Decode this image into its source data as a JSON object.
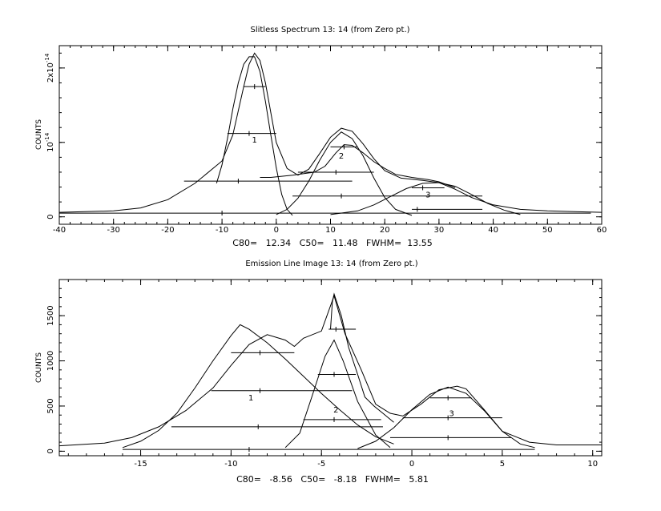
{
  "chart_data": [
    {
      "type": "line",
      "title": "Slitless Spectrum  13:  14   (from Zero pt.)",
      "ylabel": "COUNTS",
      "xlim": [
        -40,
        60
      ],
      "ylim": [
        -1e-15,
        2.3e-14
      ],
      "x_ticks": [
        "-40",
        "-30",
        "-20",
        "-10",
        "0",
        "10",
        "20",
        "30",
        "40",
        "50",
        "60"
      ],
      "y_ticks": [
        {
          "value": 0,
          "label": "0",
          "exp": ""
        },
        {
          "value": 1e-14,
          "label": "10",
          "exp": "-14"
        },
        {
          "value": 2e-14,
          "label": "2x10",
          "exp": "-14"
        }
      ],
      "footer": "C80=   12.34   C50=   11.48   FWHM=  13.55",
      "component_labels": [
        {
          "text": "1",
          "x": -4,
          "y": 1e-14
        },
        {
          "text": "2",
          "x": 12,
          "y": 7.8e-15
        },
        {
          "text": "3",
          "x": 28,
          "y": 2.6e-15
        }
      ],
      "series": [
        {
          "values": [
            [
              -40,
              6e-16
            ],
            [
              -30,
              8e-16
            ],
            [
              -25,
              1.2e-15
            ],
            [
              -20,
              2.3e-15
            ],
            [
              -15,
              4.5e-15
            ],
            [
              -10,
              7.5e-15
            ],
            [
              -8,
              1.1e-14
            ],
            [
              -6,
              1.75e-14
            ],
            [
              -5,
              2.05e-14
            ],
            [
              -4,
              2.2e-14
            ],
            [
              -3,
              2.1e-14
            ],
            [
              -2,
              1.8e-14
            ],
            [
              -1,
              1.4e-14
            ],
            [
              0,
              1e-14
            ],
            [
              2,
              6.5e-15
            ],
            [
              4,
              5.6e-15
            ],
            [
              6,
              6.4e-15
            ],
            [
              8,
              8.5e-15
            ],
            [
              10,
              1.07e-14
            ],
            [
              12,
              1.19e-14
            ],
            [
              14,
              1.15e-14
            ],
            [
              16,
              9.8e-15
            ],
            [
              18,
              7.8e-15
            ],
            [
              20,
              6.2e-15
            ],
            [
              23,
              5.2e-15
            ],
            [
              27,
              4.9e-15
            ],
            [
              30,
              4.6e-15
            ],
            [
              33,
              3.7e-15
            ],
            [
              36,
              2.6e-15
            ],
            [
              40,
              1.6e-15
            ],
            [
              45,
              1e-15
            ],
            [
              50,
              8e-16
            ],
            [
              55,
              7e-16
            ],
            [
              60,
              6e-16
            ]
          ]
        },
        {
          "values": [
            [
              -11,
              4.5e-15
            ],
            [
              -10,
              7e-15
            ],
            [
              -9,
              1.05e-14
            ],
            [
              -8,
              1.45e-14
            ],
            [
              -7,
              1.8e-14
            ],
            [
              -6,
              2.05e-14
            ],
            [
              -5,
              2.15e-14
            ],
            [
              -4,
              2.15e-14
            ],
            [
              -3,
              1.95e-14
            ],
            [
              -2,
              1.55e-14
            ],
            [
              -1,
              1.1e-14
            ],
            [
              0,
              6.6e-15
            ],
            [
              1,
              3e-15
            ],
            [
              2,
              1e-15
            ],
            [
              3,
              2e-16
            ]
          ]
        },
        {
          "values": [
            [
              0,
              3e-16
            ],
            [
              2,
              1e-15
            ],
            [
              4,
              2.5e-15
            ],
            [
              6,
              4.8e-15
            ],
            [
              8,
              7.6e-15
            ],
            [
              10,
              1e-14
            ],
            [
              12,
              1.14e-14
            ],
            [
              14,
              1.05e-14
            ],
            [
              16,
              8.2e-15
            ],
            [
              18,
              5.2e-15
            ],
            [
              20,
              2.6e-15
            ],
            [
              22,
              1e-15
            ],
            [
              25,
              2e-16
            ]
          ]
        },
        {
          "values": [
            [
              10,
              3e-16
            ],
            [
              15,
              8e-16
            ],
            [
              18,
              1.6e-15
            ],
            [
              21,
              2.7e-15
            ],
            [
              24,
              3.8e-15
            ],
            [
              27,
              4.5e-15
            ],
            [
              30,
              4.6e-15
            ],
            [
              33,
              4.1e-15
            ],
            [
              36,
              3e-15
            ],
            [
              39,
              1.8e-15
            ],
            [
              42,
              9e-16
            ],
            [
              45,
              3e-16
            ]
          ]
        },
        {
          "values": [
            [
              -3,
              5.3e-15
            ],
            [
              -1,
              5.3e-15
            ],
            [
              3,
              5.6e-15
            ],
            [
              7,
              6e-15
            ],
            [
              9,
              6.8e-15
            ],
            [
              11,
              8.6e-15
            ],
            [
              12.5,
              9.7e-15
            ],
            [
              14,
              9.6e-15
            ],
            [
              16,
              8.6e-15
            ],
            [
              18,
              7.4e-15
            ],
            [
              20,
              6.5e-15
            ],
            [
              22,
              5.7e-15
            ],
            [
              25,
              5.3e-15
            ],
            [
              28,
              5e-15
            ],
            [
              30,
              4.7e-15
            ],
            [
              33,
              3.9e-15
            ]
          ]
        }
      ],
      "bars": [
        {
          "x1": -40,
          "x2": 58,
          "y": 5e-16,
          "tick": -10
        },
        {
          "x1": -17,
          "x2": 14,
          "y": 4.8e-15,
          "tick": -7
        },
        {
          "x1": -9,
          "x2": 0,
          "y": 1.12e-14,
          "tick": -5
        },
        {
          "x1": -6,
          "x2": -2,
          "y": 1.75e-14,
          "tick": -4
        },
        {
          "x1": 4,
          "x2": 18,
          "y": 6e-15,
          "tick": 11
        },
        {
          "x1": 10,
          "x2": 15,
          "y": 9.4e-15,
          "tick": 12.5
        },
        {
          "x1": 3,
          "x2": 38,
          "y": 2.8e-15,
          "tick": 12
        },
        {
          "x1": 25,
          "x2": 31,
          "y": 3.9e-15,
          "tick": 27
        },
        {
          "x1": 25,
          "x2": 38,
          "y": 1e-15,
          "tick": 26
        }
      ]
    },
    {
      "type": "line",
      "title": "Emission Line Image  13:  14   (from Zero pt.)",
      "ylabel": "COUNTS",
      "xlim": [
        -19.5,
        10.5
      ],
      "ylim": [
        -50,
        1900
      ],
      "x_ticks": [
        "-15",
        "-10",
        "-5",
        "0",
        "5",
        "10"
      ],
      "x_tick_values": [
        -15,
        -10,
        -5,
        0,
        5,
        10
      ],
      "y_ticks": [
        {
          "value": 0,
          "label": "0"
        },
        {
          "value": 500,
          "label": "500"
        },
        {
          "value": 1000,
          "label": "1000"
        },
        {
          "value": 1500,
          "label": "1500"
        }
      ],
      "footer": "C80=   -8.56   C50=   -8.18   FWHM=   5.81",
      "component_labels": [
        {
          "text": "1",
          "x": -8.9,
          "y": 560
        },
        {
          "text": "2",
          "x": -4.2,
          "y": 430
        },
        {
          "text": "3",
          "x": 2.2,
          "y": 390
        }
      ],
      "series": [
        {
          "values": [
            [
              -19.5,
              60
            ],
            [
              -17,
              90
            ],
            [
              -15.5,
              150
            ],
            [
              -14,
              270
            ],
            [
              -12.5,
              450
            ],
            [
              -11,
              700
            ],
            [
              -10,
              950
            ],
            [
              -9,
              1180
            ],
            [
              -8,
              1290
            ],
            [
              -7,
              1230
            ],
            [
              -6.5,
              1160
            ],
            [
              -6,
              1250
            ],
            [
              -5,
              1330
            ],
            [
              -4.3,
              1720
            ],
            [
              -3.7,
              1300
            ],
            [
              -2.8,
              900
            ],
            [
              -2,
              520
            ],
            [
              -1.2,
              420
            ],
            [
              -0.5,
              390
            ],
            [
              0.5,
              520
            ],
            [
              1.5,
              680
            ],
            [
              2.5,
              720
            ],
            [
              3,
              690
            ],
            [
              4,
              460
            ],
            [
              5,
              220
            ],
            [
              6.5,
              100
            ],
            [
              8,
              70
            ],
            [
              10.5,
              70
            ]
          ]
        },
        {
          "values": [
            [
              -16,
              40
            ],
            [
              -15,
              110
            ],
            [
              -14,
              230
            ],
            [
              -13,
              420
            ],
            [
              -12,
              700
            ],
            [
              -11,
              1000
            ],
            [
              -10,
              1280
            ],
            [
              -9.5,
              1400
            ],
            [
              -9,
              1350
            ],
            [
              -8,
              1200
            ],
            [
              -7,
              1020
            ],
            [
              -6,
              830
            ],
            [
              -5,
              640
            ],
            [
              -4,
              460
            ],
            [
              -3,
              290
            ],
            [
              -2,
              160
            ],
            [
              -1,
              80
            ]
          ]
        },
        {
          "values": [
            [
              -7,
              40
            ],
            [
              -6.2,
              200
            ],
            [
              -5.5,
              620
            ],
            [
              -4.8,
              1050
            ],
            [
              -4.3,
              1230
            ],
            [
              -3.8,
              1000
            ],
            [
              -3,
              550
            ],
            [
              -2,
              180
            ],
            [
              -1.2,
              40
            ]
          ]
        },
        {
          "values": [
            [
              -4.5,
              1350
            ],
            [
              -4.4,
              1650
            ],
            [
              -4.3,
              1740
            ],
            [
              -3.9,
              1500
            ],
            [
              -3.5,
              1150
            ],
            [
              -3,
              850
            ],
            [
              -2.6,
              600
            ],
            [
              -2.1,
              500
            ],
            [
              -1.6,
              420
            ],
            [
              -1,
              320
            ]
          ]
        },
        {
          "values": [
            [
              -3,
              30
            ],
            [
              -2,
              110
            ],
            [
              -1,
              260
            ],
            [
              0,
              460
            ],
            [
              1,
              630
            ],
            [
              2,
              710
            ],
            [
              3,
              640
            ],
            [
              4,
              450
            ],
            [
              5,
              220
            ],
            [
              6,
              80
            ],
            [
              6.8,
              40
            ]
          ]
        }
      ],
      "bars": [
        {
          "x1": -16,
          "x2": 6.8,
          "y": 20,
          "tick": -9
        },
        {
          "x1": -13.3,
          "x2": -1.6,
          "y": 270,
          "tick": -8.5
        },
        {
          "x1": -11.1,
          "x2": -3.3,
          "y": 670,
          "tick": -8.4
        },
        {
          "x1": -10,
          "x2": -6.5,
          "y": 1090,
          "tick": -8.4
        },
        {
          "x1": -6,
          "x2": -1.7,
          "y": 350,
          "tick": -4.3
        },
        {
          "x1": -5.2,
          "x2": -3.1,
          "y": 850,
          "tick": -4.3
        },
        {
          "x1": -4.6,
          "x2": -3.1,
          "y": 1350,
          "tick": -4.2
        },
        {
          "x1": -1.2,
          "x2": 5.5,
          "y": 150,
          "tick": 2
        },
        {
          "x1": -0.5,
          "x2": 5,
          "y": 370,
          "tick": 2
        },
        {
          "x1": 1,
          "x2": 3.3,
          "y": 590,
          "tick": 2
        }
      ]
    }
  ]
}
